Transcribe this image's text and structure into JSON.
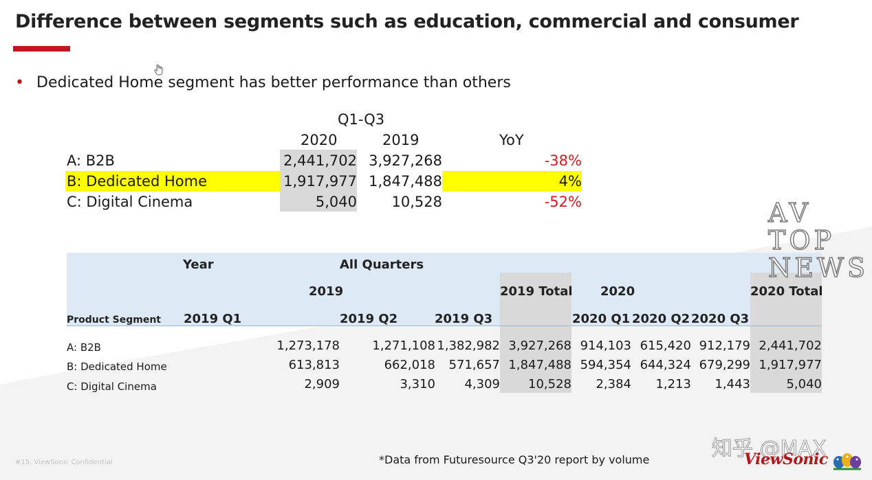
{
  "title": "Difference between segments such as education, commercial and consumer",
  "bullet": "Dedicated Home segment has better performance than others",
  "summary": {
    "period": "Q1-Q3",
    "col_2020": "2020",
    "col_2019": "2019",
    "col_yoy": "YoY",
    "rows": [
      {
        "name": "A: B2B",
        "v2020": "2,441,702",
        "v2019": "3,927,268",
        "yoy": "-38%"
      },
      {
        "name": "B: Dedicated Home",
        "v2020": "1,917,977",
        "v2019": "1,847,488",
        "yoy": "4%"
      },
      {
        "name": "C: Digital Cinema",
        "v2020": "5,040",
        "v2019": "10,528",
        "yoy": "-52%"
      }
    ]
  },
  "detail": {
    "year_label": "Year",
    "all_quarters": "All Quarters",
    "y2019": "2019",
    "total_2019": "2019 Total",
    "y2020": "2020",
    "total_2020": "2020 Total",
    "segment_header": "Product Segment",
    "quarters": [
      "2019 Q1",
      "2019 Q2",
      "2019 Q3",
      "2020 Q1",
      "2020 Q2",
      "2020 Q3"
    ],
    "rows": [
      {
        "name": "A: B2B",
        "values": [
          "1,273,178",
          "1,271,108",
          "1,382,982",
          "3,927,268",
          "914,103",
          "615,420",
          "912,179",
          "2,441,702"
        ]
      },
      {
        "name": "B: Dedicated Home",
        "values": [
          "613,813",
          "662,018",
          "571,657",
          "1,847,488",
          "594,354",
          "644,324",
          "679,299",
          "1,917,977"
        ]
      },
      {
        "name": "C: Digital Cinema",
        "values": [
          "2,909",
          "3,310",
          "4,309",
          "10,528",
          "2,384",
          "1,213",
          "1,443",
          "5,040"
        ]
      }
    ]
  },
  "watermark": "AV\nTOP\nNEWS",
  "zhihu_mark": "知乎 @MAX",
  "footnote": "*Data from Futuresource Q3'20 report by volume",
  "confidential": "#15, ViewSonic Confidential",
  "logo": "ViewSonic",
  "colors": {
    "accent": "#c0171e",
    "highlight": "#ffff00",
    "negative": "#e0161d",
    "table_header": "#dde9f4"
  }
}
